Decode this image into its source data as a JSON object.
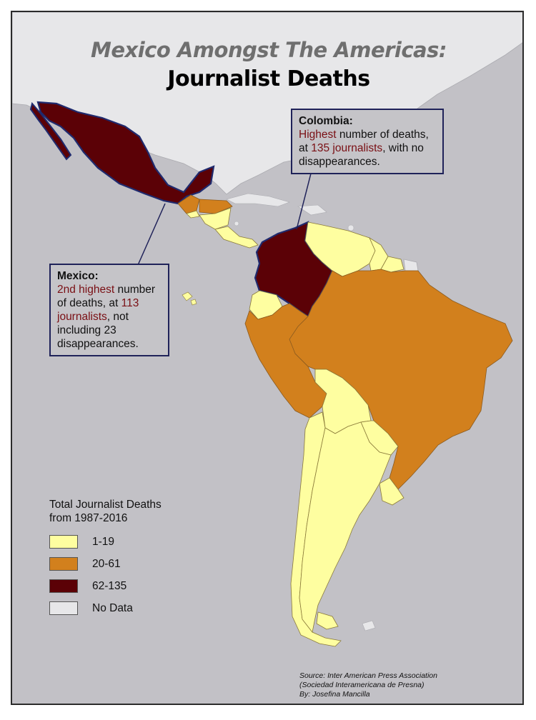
{
  "title": {
    "line1": "Mexico Amongst  The Americas:",
    "line2": "Journalist Deaths"
  },
  "colors": {
    "sea": "#c2c1c6",
    "no_data": "#e7e7e9",
    "range_1_19": "#fefea0",
    "range_20_61": "#d2801d",
    "range_62_135": "#5b0106",
    "border_highlight": "#1f2a6e",
    "highlight_text": "#7a0f14"
  },
  "callouts": {
    "colombia": {
      "heading": "Colombia:",
      "part1": "Highest",
      "part2": " number of deaths, at ",
      "part3": "135 journalists",
      "part4": ", with no disappearances."
    },
    "mexico": {
      "heading": "Mexico:",
      "part1": "2nd highest",
      "part2": " number of deaths, at ",
      "part3": "113 journalists",
      "part4": ", not including 23 disappearances."
    }
  },
  "legend": {
    "title": "Total Journalist Deaths from 1987-2016",
    "items": [
      {
        "label": "1-19",
        "color": "#fefea0"
      },
      {
        "label": "20-61",
        "color": "#d2801d"
      },
      {
        "label": "62-135",
        "color": "#5b0106"
      },
      {
        "label": "No Data",
        "color": "#e7e7e9"
      }
    ]
  },
  "source": {
    "line1": "Source: Inter American Press Association",
    "line2": "(Sociedad Interamericana de Presna)",
    "line3": "By: Josefina Mancilla"
  }
}
